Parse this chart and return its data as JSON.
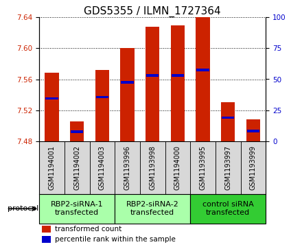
{
  "title": "GDS5355 / ILMN_1727364",
  "samples": [
    "GSM1194001",
    "GSM1194002",
    "GSM1194003",
    "GSM1193996",
    "GSM1193998",
    "GSM1194000",
    "GSM1193995",
    "GSM1193997",
    "GSM1193999"
  ],
  "bar_tops": [
    7.568,
    7.505,
    7.572,
    7.6,
    7.628,
    7.63,
    7.64,
    7.53,
    7.508
  ],
  "bar_base": 7.48,
  "blue_markers": [
    7.535,
    7.492,
    7.537,
    7.556,
    7.565,
    7.565,
    7.572,
    7.51,
    7.493
  ],
  "ylim": [
    7.48,
    7.64
  ],
  "yticks": [
    7.48,
    7.52,
    7.56,
    7.6,
    7.64
  ],
  "right_yticks": [
    0,
    25,
    50,
    75,
    100
  ],
  "right_ylim": [
    0,
    100
  ],
  "bar_color": "#cc2200",
  "blue_color": "#0000cc",
  "sample_box_color": "#d8d8d8",
  "groups": [
    {
      "label": "RBP2-siRNA-1\ntransfected",
      "indices": [
        0,
        1,
        2
      ],
      "color": "#aaffaa"
    },
    {
      "label": "RBP2-siRNA-2\ntransfected",
      "indices": [
        3,
        4,
        5
      ],
      "color": "#aaffaa"
    },
    {
      "label": "control siRNA\ntransfected",
      "indices": [
        6,
        7,
        8
      ],
      "color": "#33cc33"
    }
  ],
  "protocol_label": "protocol",
  "legend_red": "transformed count",
  "legend_blue": "percentile rank within the sample",
  "title_fontsize": 11,
  "tick_fontsize": 7.5,
  "sample_fontsize": 7,
  "group_fontsize": 8,
  "bar_width": 0.55,
  "left_tick_color": "#cc2200",
  "right_tick_color": "#0000cc"
}
